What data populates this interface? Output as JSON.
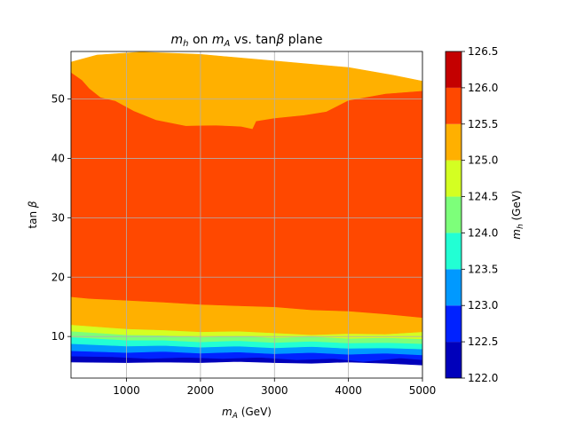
{
  "chart_data": {
    "type": "heatmap",
    "subtype": "filled-contour",
    "title": {
      "prefix": "m",
      "prefix_sub": "h",
      "middle": " on ",
      "x_sym": "m",
      "x_sym_sub": "A",
      "middle2": " vs. tan",
      "beta": "β",
      "suffix": " plane"
    },
    "xlabel": {
      "sym": "m",
      "sub": "A",
      "unit": " (GeV)"
    },
    "ylabel": {
      "text": "tan ",
      "beta": "β"
    },
    "xlim": [
      250,
      5000
    ],
    "ylim": [
      3,
      58
    ],
    "xticks": [
      1000,
      2000,
      3000,
      4000,
      5000
    ],
    "yticks": [
      10,
      20,
      30,
      40,
      50
    ],
    "grid": true,
    "colorbar": {
      "label": {
        "sym": "m",
        "sub": "h",
        "unit": " (GeV)"
      },
      "levels": [
        122.0,
        122.5,
        123.0,
        123.5,
        124.0,
        124.5,
        125.0,
        125.5,
        126.0,
        126.5
      ],
      "tick_labels": [
        "122.0",
        "122.5",
        "123.0",
        "123.5",
        "124.0",
        "124.5",
        "125.0",
        "125.5",
        "126.0",
        "126.5"
      ],
      "colors": [
        "#0000bb",
        "#0022ff",
        "#0099ff",
        "#22ffd4",
        "#7dff7a",
        "#d4ff22",
        "#ffb000",
        "#ff4800",
        "#c40000"
      ]
    },
    "contour_bands": [
      {
        "level": "122.0–122.5",
        "color": "#0000bb",
        "points": [
          [
            250,
            5.7
          ],
          [
            1000,
            5.6
          ],
          [
            1500,
            5.7
          ],
          [
            2000,
            5.6
          ],
          [
            2500,
            5.8
          ],
          [
            3000,
            5.6
          ],
          [
            3500,
            5.5
          ],
          [
            4000,
            5.7
          ],
          [
            4500,
            5.5
          ],
          [
            5000,
            5.2
          ],
          [
            5000,
            6.1
          ],
          [
            4700,
            6.4
          ],
          [
            4200,
            5.8
          ],
          [
            3800,
            6.3
          ],
          [
            3300,
            6.1
          ],
          [
            2800,
            6.5
          ],
          [
            2300,
            6.3
          ],
          [
            1800,
            6.5
          ],
          [
            1300,
            6.3
          ],
          [
            800,
            6.6
          ],
          [
            250,
            6.7
          ]
        ]
      },
      {
        "level": "122.5–123.0",
        "color": "#0022ff",
        "points": [
          [
            250,
            6.7
          ],
          [
            800,
            6.6
          ],
          [
            1300,
            6.3
          ],
          [
            1800,
            6.5
          ],
          [
            2300,
            6.3
          ],
          [
            2800,
            6.5
          ],
          [
            3300,
            6.1
          ],
          [
            3800,
            6.3
          ],
          [
            4200,
            5.8
          ],
          [
            4700,
            6.4
          ],
          [
            5000,
            6.1
          ],
          [
            5000,
            6.9
          ],
          [
            4500,
            7.2
          ],
          [
            4000,
            7.0
          ],
          [
            3500,
            7.3
          ],
          [
            3000,
            7.1
          ],
          [
            2500,
            7.4
          ],
          [
            2000,
            7.2
          ],
          [
            1500,
            7.5
          ],
          [
            1000,
            7.3
          ],
          [
            250,
            7.6
          ]
        ]
      },
      {
        "level": "123.0–123.5",
        "color": "#0099ff",
        "points": [
          [
            250,
            7.6
          ],
          [
            1000,
            7.3
          ],
          [
            1500,
            7.5
          ],
          [
            2000,
            7.2
          ],
          [
            2500,
            7.4
          ],
          [
            3000,
            7.1
          ],
          [
            3500,
            7.3
          ],
          [
            4000,
            7.0
          ],
          [
            4500,
            7.2
          ],
          [
            5000,
            6.9
          ],
          [
            5000,
            7.9
          ],
          [
            4500,
            8.1
          ],
          [
            4000,
            8.0
          ],
          [
            3500,
            8.3
          ],
          [
            3000,
            8.1
          ],
          [
            2500,
            8.4
          ],
          [
            2000,
            8.2
          ],
          [
            1500,
            8.5
          ],
          [
            1000,
            8.4
          ],
          [
            250,
            8.8
          ]
        ]
      },
      {
        "level": "123.5–124.0",
        "color": "#22ffd4",
        "points": [
          [
            250,
            8.8
          ],
          [
            1000,
            8.4
          ],
          [
            1500,
            8.5
          ],
          [
            2000,
            8.2
          ],
          [
            2500,
            8.4
          ],
          [
            3000,
            8.1
          ],
          [
            3500,
            8.3
          ],
          [
            4000,
            8.0
          ],
          [
            4500,
            8.1
          ],
          [
            5000,
            7.9
          ],
          [
            5000,
            8.8
          ],
          [
            4500,
            9.0
          ],
          [
            4000,
            8.9
          ],
          [
            3500,
            9.2
          ],
          [
            3000,
            9.0
          ],
          [
            2500,
            9.3
          ],
          [
            2000,
            9.1
          ],
          [
            1500,
            9.4
          ],
          [
            1000,
            9.4
          ],
          [
            250,
            9.9
          ]
        ]
      },
      {
        "level": "124.0–124.5",
        "color": "#7dff7a",
        "points": [
          [
            250,
            9.9
          ],
          [
            1000,
            9.4
          ],
          [
            1500,
            9.4
          ],
          [
            2000,
            9.1
          ],
          [
            2500,
            9.3
          ],
          [
            3000,
            9.0
          ],
          [
            3500,
            9.2
          ],
          [
            4000,
            8.9
          ],
          [
            4500,
            9.0
          ],
          [
            5000,
            8.8
          ],
          [
            5000,
            9.6
          ],
          [
            4500,
            9.8
          ],
          [
            4000,
            9.7
          ],
          [
            3500,
            10.0
          ],
          [
            3000,
            9.8
          ],
          [
            2500,
            10.1
          ],
          [
            2000,
            9.9
          ],
          [
            1500,
            10.2
          ],
          [
            1000,
            10.3
          ],
          [
            250,
            10.9
          ]
        ]
      },
      {
        "level": "124.5–125.0",
        "color": "#d4ff22",
        "points": [
          [
            250,
            10.9
          ],
          [
            1000,
            10.3
          ],
          [
            1500,
            10.2
          ],
          [
            2000,
            9.9
          ],
          [
            2500,
            10.1
          ],
          [
            3000,
            9.8
          ],
          [
            3500,
            10.0
          ],
          [
            4000,
            9.7
          ],
          [
            4500,
            9.8
          ],
          [
            5000,
            9.6
          ],
          [
            5000,
            10.8
          ],
          [
            4500,
            10.4
          ],
          [
            4000,
            10.5
          ],
          [
            3500,
            10.3
          ],
          [
            3000,
            10.6
          ],
          [
            2500,
            10.9
          ],
          [
            2000,
            10.8
          ],
          [
            1500,
            11.1
          ],
          [
            1000,
            11.3
          ],
          [
            250,
            12.0
          ]
        ]
      },
      {
        "level": "125.0–125.5 (low)",
        "color": "#ffb000",
        "points": [
          [
            250,
            12.0
          ],
          [
            1000,
            11.3
          ],
          [
            1500,
            11.1
          ],
          [
            2000,
            10.8
          ],
          [
            2500,
            10.9
          ],
          [
            3000,
            10.6
          ],
          [
            3500,
            10.3
          ],
          [
            4000,
            10.5
          ],
          [
            4500,
            10.4
          ],
          [
            5000,
            10.8
          ],
          [
            5000,
            13.2
          ],
          [
            4500,
            13.8
          ],
          [
            4000,
            14.3
          ],
          [
            3500,
            14.5
          ],
          [
            3000,
            15.0
          ],
          [
            2500,
            15.2
          ],
          [
            2000,
            15.4
          ],
          [
            1500,
            15.8
          ],
          [
            1000,
            16.1
          ],
          [
            500,
            16.4
          ],
          [
            250,
            16.7
          ]
        ]
      },
      {
        "level": "125.5–126.0",
        "color": "#ff4800",
        "points": [
          [
            250,
            16.7
          ],
          [
            500,
            16.4
          ],
          [
            1000,
            16.1
          ],
          [
            1500,
            15.8
          ],
          [
            2000,
            15.4
          ],
          [
            2500,
            15.2
          ],
          [
            3000,
            15.0
          ],
          [
            3500,
            14.5
          ],
          [
            4000,
            14.3
          ],
          [
            4500,
            13.8
          ],
          [
            5000,
            13.2
          ],
          [
            5000,
            51.4
          ],
          [
            4500,
            50.9
          ],
          [
            4000,
            49.8
          ],
          [
            3700,
            47.9
          ],
          [
            3400,
            47.3
          ],
          [
            3000,
            46.8
          ],
          [
            2750,
            46.3
          ],
          [
            2700,
            45.0
          ],
          [
            2550,
            45.4
          ],
          [
            2200,
            45.6
          ],
          [
            1800,
            45.5
          ],
          [
            1400,
            46.5
          ],
          [
            1100,
            48.0
          ],
          [
            850,
            49.7
          ],
          [
            650,
            50.3
          ],
          [
            500,
            51.8
          ],
          [
            400,
            53.2
          ],
          [
            250,
            54.5
          ]
        ]
      },
      {
        "level": "125.0–125.5 (high)",
        "color": "#ffb000",
        "points": [
          [
            250,
            54.5
          ],
          [
            400,
            53.2
          ],
          [
            500,
            51.8
          ],
          [
            650,
            50.3
          ],
          [
            850,
            49.7
          ],
          [
            1100,
            48.0
          ],
          [
            1400,
            46.5
          ],
          [
            1800,
            45.5
          ],
          [
            2200,
            45.6
          ],
          [
            2550,
            45.4
          ],
          [
            2700,
            45.0
          ],
          [
            2750,
            46.3
          ],
          [
            3000,
            46.8
          ],
          [
            3400,
            47.3
          ],
          [
            3700,
            47.9
          ],
          [
            4000,
            49.8
          ],
          [
            4500,
            50.9
          ],
          [
            5000,
            51.4
          ],
          [
            5000,
            53.0
          ],
          [
            4600,
            54.0
          ],
          [
            4000,
            55.3
          ],
          [
            3000,
            56.4
          ],
          [
            2000,
            57.5
          ],
          [
            1200,
            57.9
          ],
          [
            600,
            57.4
          ],
          [
            250,
            56.2
          ]
        ]
      }
    ]
  }
}
